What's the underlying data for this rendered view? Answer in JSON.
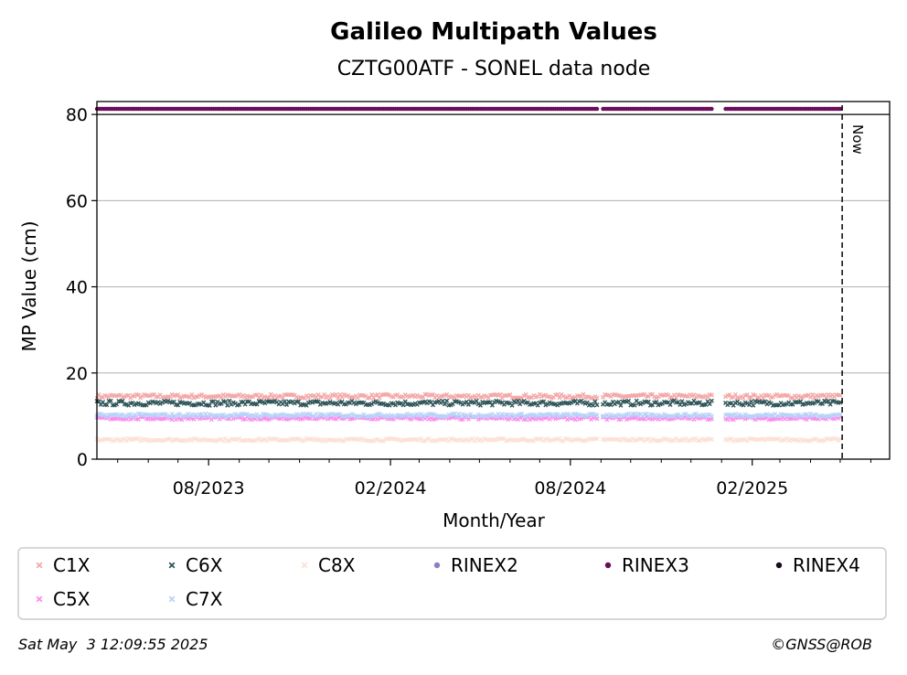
{
  "chart_data": {
    "type": "scatter",
    "title": "Galileo Multipath Values",
    "subtitle": "CZTG00ATF - SONEL data node",
    "xlabel": "Month/Year",
    "ylabel": "MP Value (cm)",
    "ylim": [
      0,
      83
    ],
    "xlim": [
      "2023-04-10",
      "2025-06-20"
    ],
    "y_ticks": [
      0,
      20,
      40,
      60,
      80
    ],
    "y_tick_labels": [
      "0",
      "20",
      "40",
      "60",
      "80"
    ],
    "x_ticks": [
      "2023-08-01",
      "2024-02-01",
      "2024-08-01",
      "2025-02-01"
    ],
    "x_tick_labels": [
      "08/2023",
      "02/2024",
      "08/2024",
      "02/2025"
    ],
    "grid": "y-major",
    "data_start": "2023-04-10",
    "data_end": "2025-05-02",
    "gaps": [
      [
        "2024-08-29",
        "2024-09-02"
      ],
      [
        "2024-12-24",
        "2025-01-04"
      ]
    ],
    "now_date": "2025-05-03",
    "now_label": "Now",
    "legend_position": "below-plot",
    "series": [
      {
        "name": "C1X",
        "marker": "x",
        "color": "#f4a7a7",
        "mean": 14.6
      },
      {
        "name": "C6X",
        "marker": "x",
        "color": "#2f5559",
        "mean": 13.0
      },
      {
        "name": "C8X",
        "marker": "x",
        "color": "#fde0d5",
        "mean": 4.5
      },
      {
        "name": "RINEX2",
        "marker": "o",
        "color": "#8a7fc4",
        "mean": null
      },
      {
        "name": "RINEX3",
        "marker": "o",
        "color": "#6b0c5c",
        "mean": 81.3
      },
      {
        "name": "RINEX4",
        "marker": "o",
        "color": "#1a0a1e",
        "mean": null
      },
      {
        "name": "C5X",
        "marker": "x",
        "color": "#fb8cf0",
        "mean": 9.5
      },
      {
        "name": "C7X",
        "marker": "x",
        "color": "#b6d3f7",
        "mean": 10.2
      }
    ]
  },
  "footer": {
    "timestamp": "Sat May  3 12:09:55 2025",
    "credit": "©GNSS@ROB"
  }
}
